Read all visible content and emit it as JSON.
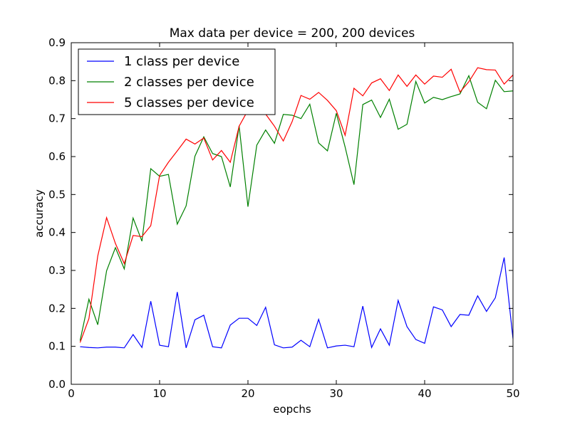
{
  "chart_data": {
    "type": "line",
    "title": "Max data per device = 200, 200 devices",
    "xlabel": "eopchs",
    "ylabel": "accuracy",
    "xlim": [
      0,
      50
    ],
    "ylim": [
      0,
      0.9
    ],
    "xticks": [
      0,
      10,
      20,
      30,
      40,
      50
    ],
    "yticks": [
      0.0,
      0.1,
      0.2,
      0.3,
      0.4,
      0.5,
      0.6,
      0.7,
      0.8,
      0.9
    ],
    "xtick_labels": [
      "0",
      "10",
      "20",
      "30",
      "40",
      "50"
    ],
    "ytick_labels": [
      "0.0",
      "0.1",
      "0.2",
      "0.3",
      "0.4",
      "0.5",
      "0.6",
      "0.7",
      "0.8",
      "0.9"
    ],
    "grid": false,
    "legend_position": "top-left",
    "x": [
      1,
      2,
      3,
      4,
      5,
      6,
      7,
      8,
      9,
      10,
      11,
      12,
      13,
      14,
      15,
      16,
      17,
      18,
      19,
      20,
      21,
      22,
      23,
      24,
      25,
      26,
      27,
      28,
      29,
      30,
      31,
      32,
      33,
      34,
      35,
      36,
      37,
      38,
      39,
      40,
      41,
      42,
      43,
      44,
      45,
      46,
      47,
      48,
      49,
      50
    ],
    "series": [
      {
        "name": "1 class per device",
        "color": "#0000ff",
        "values": [
          0.099,
          0.097,
          0.096,
          0.098,
          0.098,
          0.096,
          0.131,
          0.097,
          0.219,
          0.103,
          0.099,
          0.243,
          0.096,
          0.17,
          0.182,
          0.099,
          0.096,
          0.156,
          0.174,
          0.174,
          0.155,
          0.203,
          0.104,
          0.096,
          0.098,
          0.116,
          0.099,
          0.171,
          0.096,
          0.101,
          0.103,
          0.099,
          0.206,
          0.097,
          0.146,
          0.103,
          0.221,
          0.152,
          0.118,
          0.108,
          0.204,
          0.196,
          0.152,
          0.184,
          0.182,
          0.233,
          0.192,
          0.228,
          0.334,
          0.12
        ]
      },
      {
        "name": "2 classes per device",
        "color": "#008000",
        "values": [
          0.115,
          0.224,
          0.157,
          0.299,
          0.36,
          0.304,
          0.438,
          0.377,
          0.568,
          0.548,
          0.553,
          0.422,
          0.47,
          0.601,
          0.652,
          0.608,
          0.6,
          0.52,
          0.681,
          0.468,
          0.63,
          0.67,
          0.635,
          0.711,
          0.709,
          0.7,
          0.738,
          0.636,
          0.615,
          0.714,
          0.625,
          0.526,
          0.737,
          0.749,
          0.703,
          0.751,
          0.672,
          0.685,
          0.798,
          0.741,
          0.756,
          0.75,
          0.758,
          0.765,
          0.813,
          0.743,
          0.726,
          0.801,
          0.771,
          0.773
        ]
      },
      {
        "name": "5 classes per device",
        "color": "#ff0000",
        "values": [
          0.11,
          0.173,
          0.338,
          0.439,
          0.371,
          0.318,
          0.392,
          0.389,
          0.418,
          0.55,
          0.585,
          0.615,
          0.646,
          0.633,
          0.649,
          0.591,
          0.616,
          0.585,
          0.68,
          0.722,
          0.72,
          0.712,
          0.68,
          0.641,
          0.692,
          0.761,
          0.751,
          0.769,
          0.748,
          0.721,
          0.656,
          0.78,
          0.76,
          0.794,
          0.805,
          0.774,
          0.815,
          0.785,
          0.815,
          0.791,
          0.812,
          0.809,
          0.83,
          0.77,
          0.797,
          0.834,
          0.829,
          0.828,
          0.791,
          0.815
        ]
      }
    ]
  }
}
